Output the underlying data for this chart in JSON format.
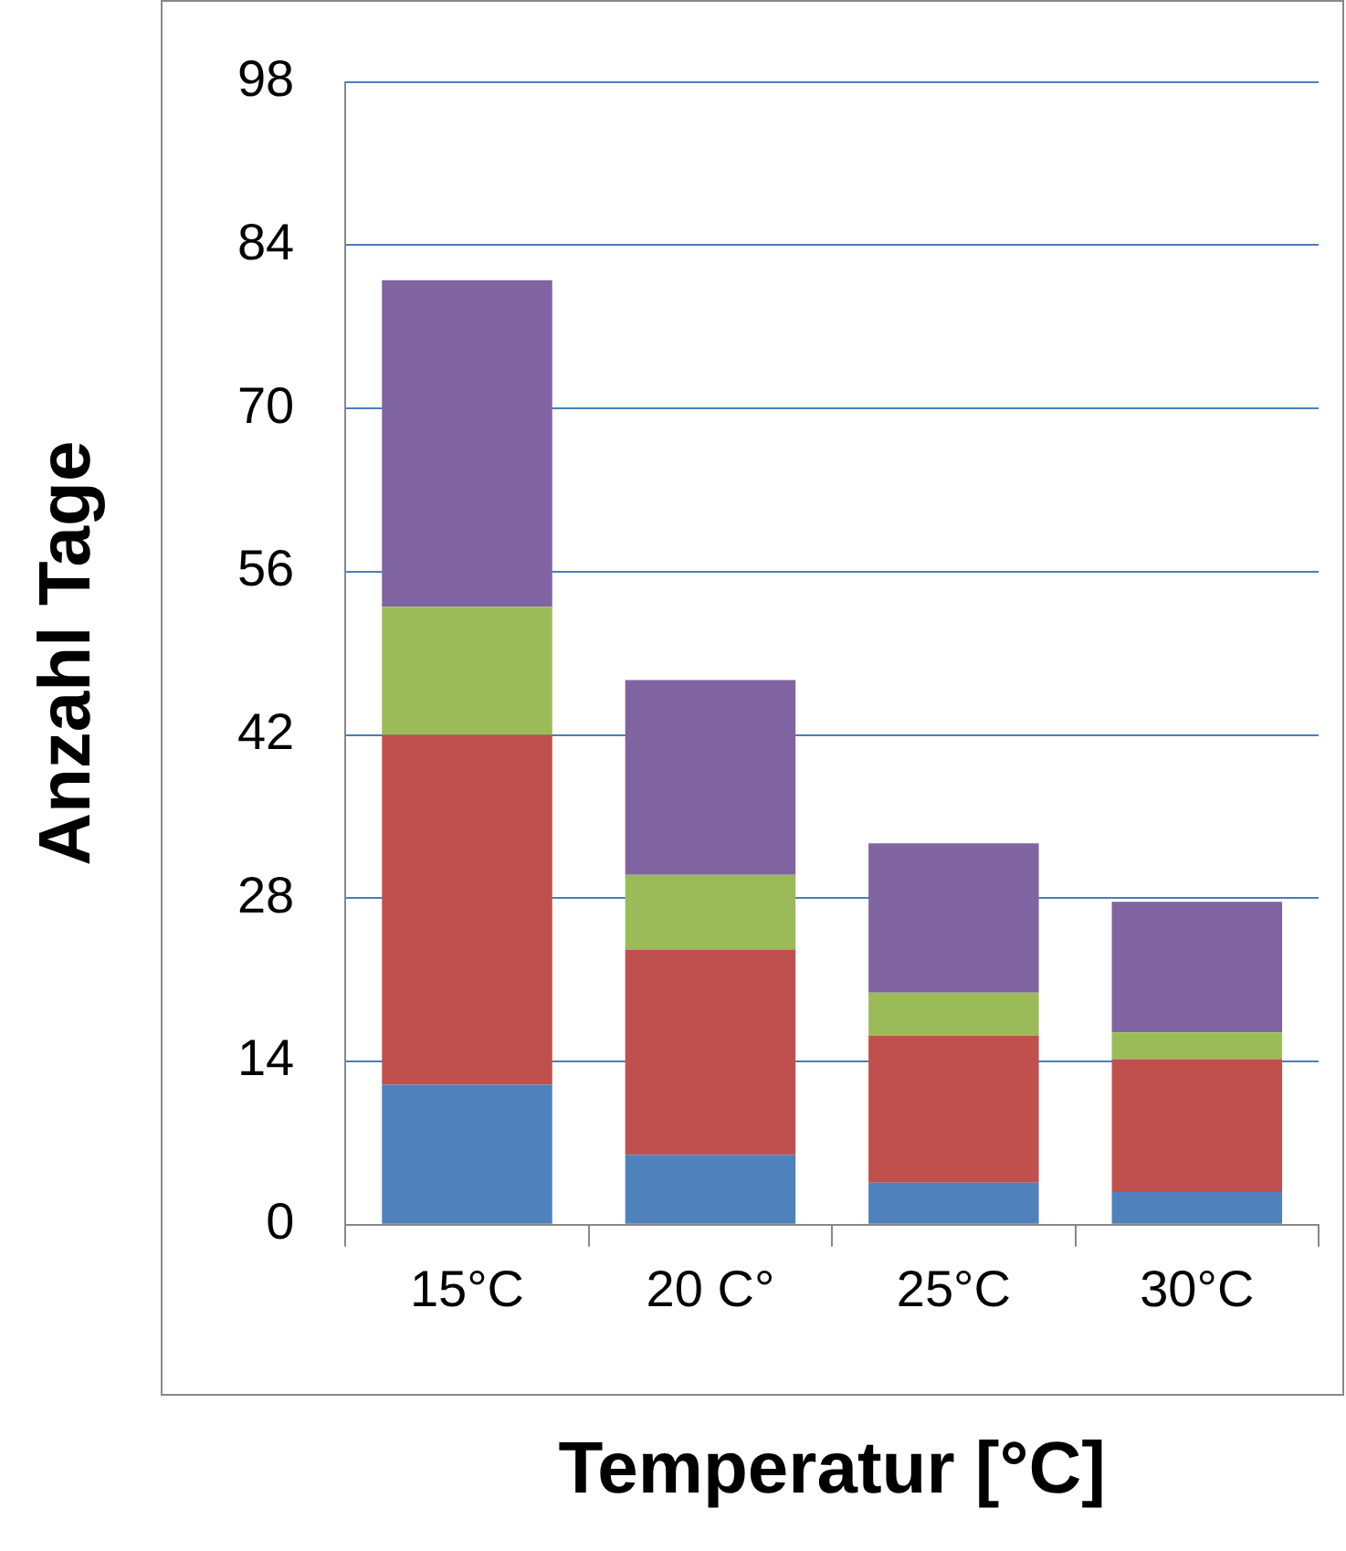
{
  "chart_data": {
    "type": "bar",
    "stacked": true,
    "xlabel": "Temperatur [°C]",
    "ylabel": "Anzahl Tage",
    "categories": [
      "15°C",
      "20 C°",
      "25°C",
      "30°C"
    ],
    "series": [
      {
        "color": "#4f81bd",
        "values": [
          12,
          6,
          3.6,
          2.8
        ]
      },
      {
        "color": "#c0504d",
        "values": [
          30,
          17.6,
          12.6,
          11.4
        ]
      },
      {
        "color": "#9bbb59",
        "values": [
          11,
          6.4,
          3.7,
          2.3
        ]
      },
      {
        "color": "#8064a2",
        "values": [
          28,
          16.7,
          12.8,
          11.2
        ]
      }
    ],
    "ylim": [
      0,
      98
    ],
    "yticks": [
      0,
      14,
      28,
      42,
      56,
      70,
      84,
      98
    ],
    "grid": "y",
    "legend": false
  }
}
